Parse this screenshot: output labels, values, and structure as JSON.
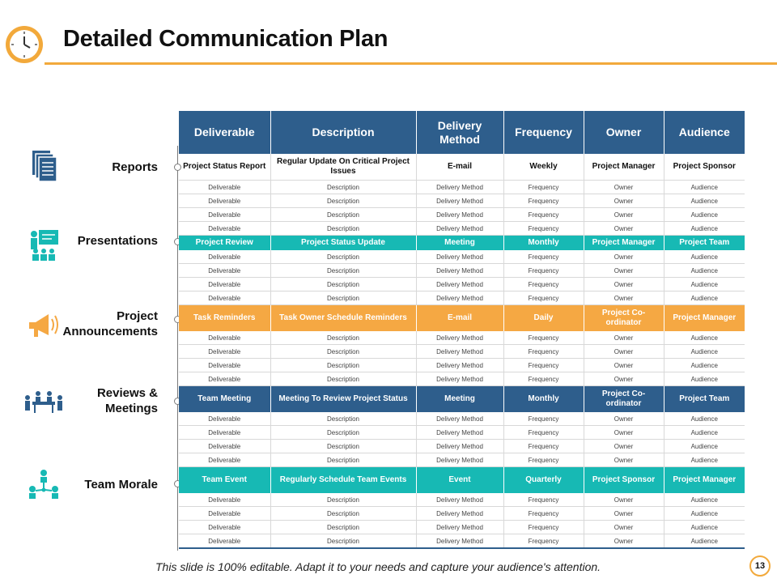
{
  "title": "Detailed Communication Plan",
  "footer_text": "This slide is 100% editable. Adapt it to your needs and capture your audience's attention.",
  "page_number": "13",
  "colors": {
    "accent": "#f2a93b",
    "header_blue": "#2e5e8c",
    "teal": "#17b9b4",
    "orange": "#f5a843"
  },
  "categories": [
    {
      "label": "Reports",
      "icon": "documents-icon"
    },
    {
      "label": "Presentations",
      "icon": "presentation-icon"
    },
    {
      "label": "Project Announcements",
      "icon": "megaphone-icon"
    },
    {
      "label": "Reviews & Meetings",
      "icon": "meeting-icon"
    },
    {
      "label": "Team Morale",
      "icon": "team-network-icon"
    }
  ],
  "table": {
    "headers": [
      "Deliverable",
      "Description",
      "Delivery Method",
      "Frequency",
      "Owner",
      "Audience"
    ],
    "placeholder": [
      "Deliverable",
      "Description",
      "Delivery Method",
      "Frequency",
      "Owner",
      "Audience"
    ],
    "highlights": [
      [
        "Project Status Report",
        "Regular Update On Critical Project Issues",
        "E-mail",
        "Weekly",
        "Project Manager",
        "Project Sponsor"
      ],
      [
        "Project Review",
        "Project Status Update",
        "Meeting",
        "Monthly",
        "Project Manager",
        "Project Team"
      ],
      [
        "Task Reminders",
        "Task Owner Schedule Reminders",
        "E-mail",
        "Daily",
        "Project Co-ordinator",
        "Project Manager"
      ],
      [
        "Team Meeting",
        "Meeting To Review Project Status",
        "Meeting",
        "Monthly",
        "Project Co-ordinator",
        "Project Team"
      ],
      [
        "Team Event",
        "Regularly Schedule Team Events",
        "Event",
        "Quarterly",
        "Project Sponsor",
        "Project Manager"
      ]
    ]
  }
}
